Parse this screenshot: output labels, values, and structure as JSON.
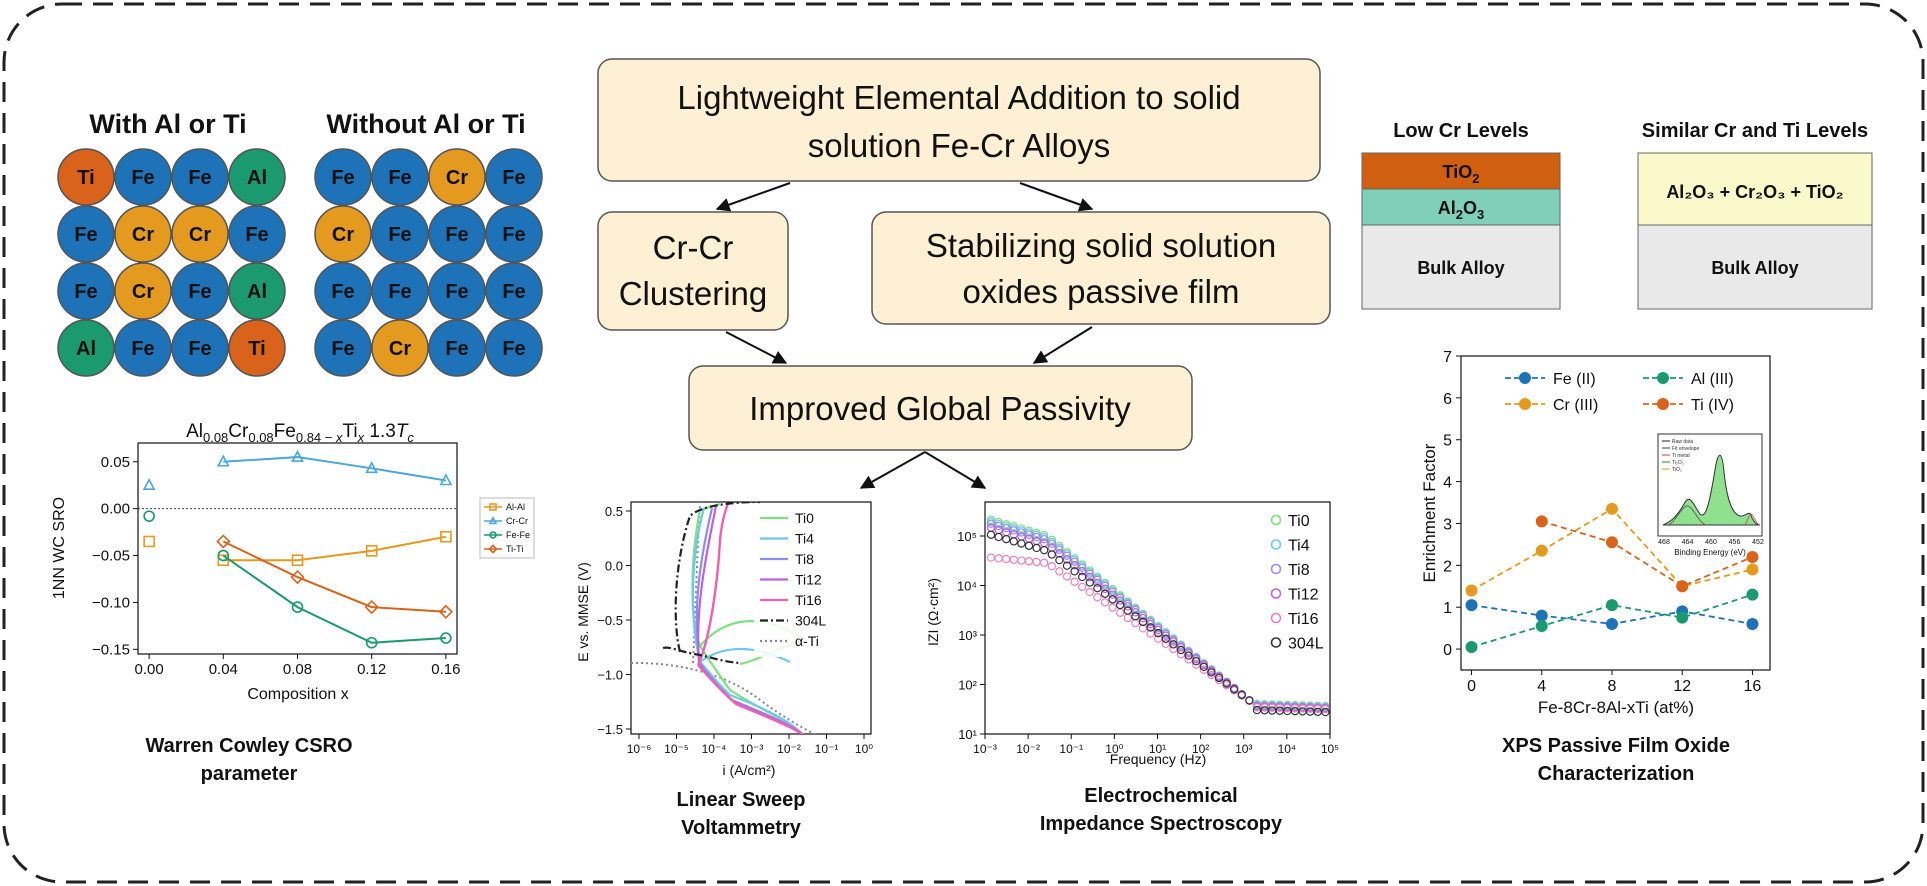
{
  "lattice": {
    "with_title": "With Al or Ti",
    "without_title": "Without Al or Ti",
    "with_grid": [
      [
        "Ti",
        "Fe",
        "Fe",
        "Al"
      ],
      [
        "Fe",
        "Cr",
        "Cr",
        "Fe"
      ],
      [
        "Fe",
        "Cr",
        "Fe",
        "Al"
      ],
      [
        "Al",
        "Fe",
        "Fe",
        "Ti"
      ]
    ],
    "without_grid": [
      [
        "Fe",
        "Fe",
        "Cr",
        "Fe"
      ],
      [
        "Cr",
        "Fe",
        "Fe",
        "Fe"
      ],
      [
        "Fe",
        "Fe",
        "Fe",
        "Fe"
      ],
      [
        "Fe",
        "Cr",
        "Fe",
        "Fe"
      ]
    ],
    "colors": {
      "Fe": "#1e73b8",
      "Cr": "#e49a1f",
      "Al": "#1a9a6e",
      "Ti": "#d9631a"
    }
  },
  "flow": {
    "top": "Lightweight Elemental Addition to solid solution Fe-Cr Alloys",
    "top_lines": [
      "Lightweight Elemental Addition to solid",
      "solution Fe-Cr Alloys"
    ],
    "left_lines": [
      "Cr-Cr",
      "Clustering"
    ],
    "right_lines": [
      "Stabilizing solid solution",
      "oxides passive film"
    ],
    "bottom": "Improved Global Passivity",
    "box_fill": "#fdf0d4"
  },
  "layers": {
    "left_title": "Low Cr Levels",
    "right_title": "Similar Cr and Ti Levels",
    "left_layers": [
      {
        "label": "TiO",
        "sub": "2",
        "color": "#d05f10"
      },
      {
        "label": "Al",
        "sub": "2",
        "label2": "O",
        "sub2": "3",
        "color": "#7fd0b6"
      },
      {
        "label": "Bulk Alloy",
        "color": "#e9e9e9"
      }
    ],
    "right_top": "Al₂O₃ + Cr₂O₃ + TiO₂",
    "right_top_color": "#fbf8cc",
    "right_bulk": "Bulk Alloy"
  },
  "chart_data": [
    {
      "type": "line",
      "name": "sro",
      "title": "Al0.08Cr0.08Fe0.84−xTix 1.3Tc",
      "xlabel": "Composition x",
      "ylabel": "1NN WC SRO",
      "xticks": [
        "0.00",
        "0.04",
        "0.08",
        "0.12",
        "0.16"
      ],
      "yticks": [
        "0.05",
        "0.00",
        "−0.05",
        "−0.10",
        "−0.15"
      ],
      "xlim": [
        -0.006,
        0.166
      ],
      "ylim": [
        -0.155,
        0.07
      ],
      "caption_lines": [
        "Warren Cowley CSRO",
        "parameter"
      ],
      "series": [
        {
          "name": "Al-Al",
          "color": "#e49a1f",
          "marker": "square",
          "x0": 0.0,
          "y0": -0.035,
          "x": [
            0.04,
            0.08,
            0.12,
            0.16
          ],
          "y": [
            -0.055,
            -0.055,
            -0.045,
            -0.03
          ]
        },
        {
          "name": "Cr-Cr",
          "color": "#4aa8dc",
          "marker": "triangle",
          "x0": 0.0,
          "y0": 0.025,
          "x": [
            0.04,
            0.08,
            0.12,
            0.16
          ],
          "y": [
            0.05,
            0.055,
            0.043,
            0.03
          ]
        },
        {
          "name": "Fe-Fe",
          "color": "#1a9a6e",
          "marker": "circle",
          "x0": 0.0,
          "y0": -0.008,
          "x": [
            0.04,
            0.08,
            0.12,
            0.16
          ],
          "y": [
            -0.05,
            -0.105,
            -0.143,
            -0.138
          ]
        },
        {
          "name": "Ti-Ti",
          "color": "#d9631a",
          "marker": "diamond",
          "x0": null,
          "y0": null,
          "x": [
            0.04,
            0.08,
            0.12,
            0.16
          ],
          "y": [
            -0.035,
            -0.073,
            -0.105,
            -0.11
          ]
        }
      ]
    },
    {
      "type": "line",
      "name": "lsv",
      "xlabel": "i (A/cm²)",
      "ylabel": "E vs. MMSE (V)",
      "xticks": [
        "10⁻⁶",
        "10⁻⁵",
        "10⁻⁴",
        "10⁻³",
        "10⁻²",
        "10⁻¹",
        "10⁰"
      ],
      "yticks": [
        "0.5",
        "0.0",
        "−0.5",
        "−1.0",
        "−1.5"
      ],
      "caption_lines": [
        "Linear Sweep",
        "Voltammetry"
      ],
      "legend": [
        {
          "name": "Ti0",
          "color": "#7ee07e",
          "dash": ""
        },
        {
          "name": "Ti4",
          "color": "#6cc8ee",
          "dash": ""
        },
        {
          "name": "Ti8",
          "color": "#8c8cf0",
          "dash": ""
        },
        {
          "name": "Ti12",
          "color": "#c060e0",
          "dash": ""
        },
        {
          "name": "Ti16",
          "color": "#f060b0",
          "dash": ""
        },
        {
          "name": "304L",
          "color": "#222222",
          "dash": "8 3 2 3"
        },
        {
          "name": "α-Ti",
          "color": "#888888",
          "dash": "2 3"
        }
      ]
    },
    {
      "type": "scatter",
      "name": "eis",
      "xlabel": "Frequency (Hz)",
      "ylabel": "IZI (Ω·cm²)",
      "xticks": [
        "10⁻³",
        "10⁻²",
        "10⁻¹",
        "10⁰",
        "10¹",
        "10²",
        "10³",
        "10⁴",
        "10⁵"
      ],
      "yticks": [
        "10⁵",
        "10⁴",
        "10³",
        "10²",
        "10¹"
      ],
      "caption_lines": [
        "Electrochemical",
        "Impedance Spectroscopy"
      ],
      "legend": [
        {
          "name": "Ti0",
          "color": "#7ee07e"
        },
        {
          "name": "Ti4",
          "color": "#6cc8ee"
        },
        {
          "name": "Ti8",
          "color": "#9a8cf0"
        },
        {
          "name": "Ti12",
          "color": "#c060e0"
        },
        {
          "name": "Ti16",
          "color": "#f080c0"
        },
        {
          "name": "304L",
          "color": "#333333"
        }
      ]
    },
    {
      "type": "line",
      "name": "xps",
      "xlabel": "Fe-8Cr-8Al-xTi (at%)",
      "ylabel": "Enrichment Factor",
      "xticks": [
        "0",
        "4",
        "8",
        "12",
        "16"
      ],
      "yticks": [
        "0",
        "1",
        "2",
        "3",
        "4",
        "5",
        "6",
        "7"
      ],
      "xlim": [
        -0.6,
        17
      ],
      "ylim": [
        -0.5,
        7
      ],
      "caption_lines": [
        "XPS Passive Film Oxide",
        "Characterization"
      ],
      "series": [
        {
          "name": "Fe (II)",
          "color": "#1e73b8",
          "x": [
            0,
            4,
            8,
            12,
            16
          ],
          "y": [
            1.05,
            0.8,
            0.6,
            0.9,
            0.6
          ]
        },
        {
          "name": "Al (III)",
          "color": "#1a9a6e",
          "x": [
            0,
            4,
            8,
            12,
            16
          ],
          "y": [
            0.05,
            0.55,
            1.05,
            0.75,
            1.3
          ]
        },
        {
          "name": "Cr (III)",
          "color": "#e49a1f",
          "x": [
            0,
            4,
            8,
            12,
            16
          ],
          "y": [
            1.4,
            2.35,
            3.35,
            1.5,
            1.9
          ]
        },
        {
          "name": "Ti (IV)",
          "color": "#d9631a",
          "x": [
            4,
            8,
            12,
            16
          ],
          "y": [
            3.05,
            2.55,
            1.5,
            2.2
          ]
        }
      ],
      "inset": {
        "xlabel": "Binding Energy (eV)",
        "xticks": [
          "468",
          "464",
          "460",
          "456",
          "452"
        ],
        "legend": [
          "Raw data",
          "Fit envelope",
          "Ti metal",
          "Ti₂O₃",
          "TiO₂"
        ]
      }
    }
  ]
}
